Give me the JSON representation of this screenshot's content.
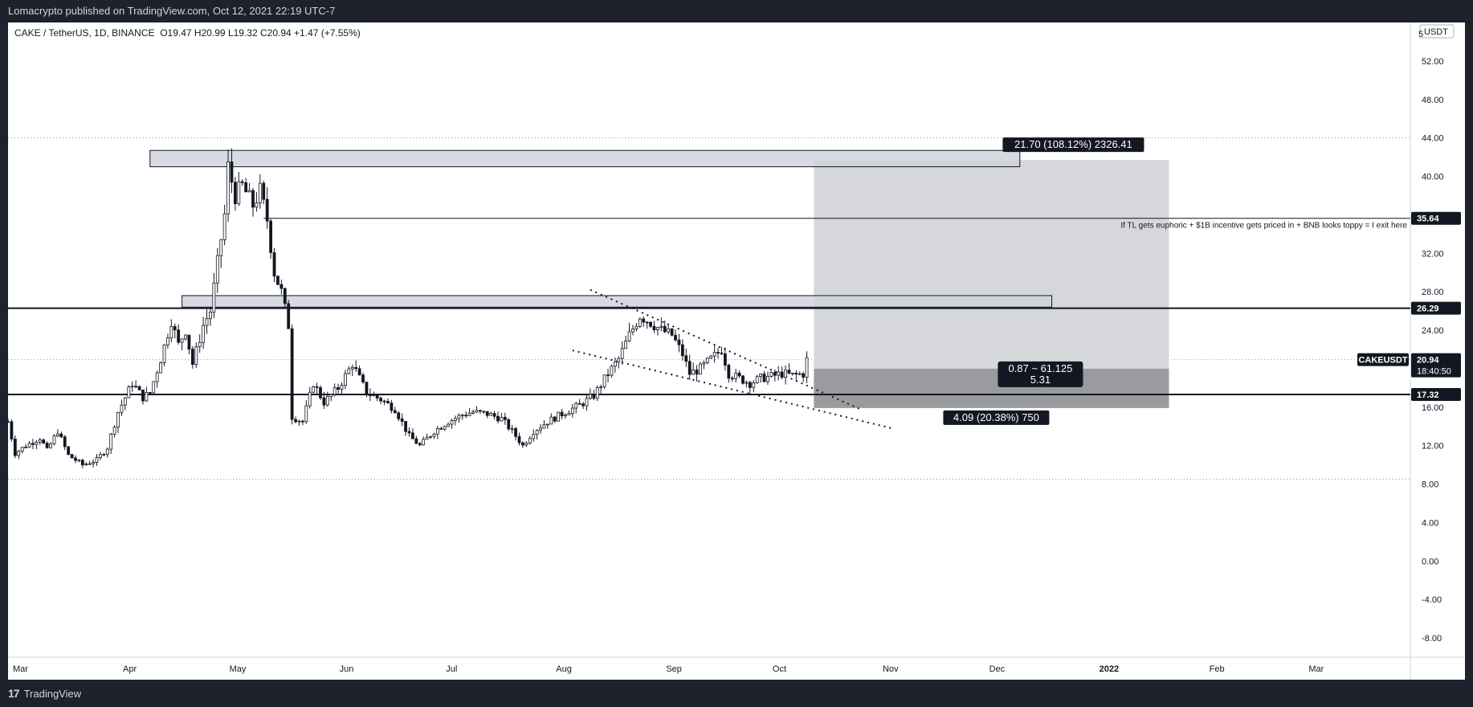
{
  "header": {
    "published_text": "Lomacrypto published on TradingView.com, Oct 12, 2021 22:19 UTC-7"
  },
  "footer": {
    "brand": "TradingView",
    "logo_glyph": "17"
  },
  "legend": {
    "symbol": "CAKE / TetherUS, 1D, BINANCE",
    "open": "O19.47",
    "high": "H20.99",
    "low": "L19.32",
    "close": "C20.94",
    "change": "+1.47 (+7.55%)"
  },
  "currency": "USDT",
  "chart_data": {
    "type": "candlestick",
    "ylim": [
      -10,
      56
    ],
    "y_ticks": [
      "52.00",
      "48.00",
      "44.00",
      "40.00",
      "36.00",
      "32.00",
      "28.00",
      "24.00",
      "20.00",
      "16.00",
      "12.00",
      "8.00",
      "4.00",
      "0.00",
      "-4.00",
      "-8.00"
    ],
    "y_tick_values": [
      52,
      48,
      44,
      40,
      36,
      32,
      28,
      24,
      20,
      16,
      12,
      8,
      4,
      0,
      -4,
      -8
    ],
    "y_top_tick_partial": "5",
    "x_ticks": [
      "Mar",
      "Apr",
      "May",
      "Jun",
      "Jul",
      "Aug",
      "Sep",
      "Oct",
      "Nov",
      "Dec",
      "2022",
      "Feb",
      "Mar"
    ],
    "x_tick_dates": [
      "2021-03-01",
      "2021-04-01",
      "2021-05-01",
      "2021-06-01",
      "2021-07-01",
      "2021-08-01",
      "2021-09-01",
      "2021-10-01",
      "2021-11-01",
      "2021-12-01",
      "2022-01-01",
      "2022-02-01",
      "2022-03-01"
    ],
    "x_range": [
      "2021-03-01",
      "2022-03-31"
    ],
    "price_series": {
      "name": "CAKEUSDT",
      "keypoints": [
        [
          "2021-03-01",
          14.5
        ],
        [
          "2021-03-03",
          11.2
        ],
        [
          "2021-03-06",
          12.0
        ],
        [
          "2021-03-10",
          12.8
        ],
        [
          "2021-03-12",
          11.5
        ],
        [
          "2021-03-15",
          13.5
        ],
        [
          "2021-03-18",
          11.0
        ],
        [
          "2021-03-22",
          10.0
        ],
        [
          "2021-03-26",
          10.5
        ],
        [
          "2021-03-29",
          11.8
        ],
        [
          "2021-04-01",
          15.5
        ],
        [
          "2021-04-05",
          18.5
        ],
        [
          "2021-04-08",
          17.0
        ],
        [
          "2021-04-10",
          17.5
        ],
        [
          "2021-04-13",
          21.0
        ],
        [
          "2021-04-16",
          25.0
        ],
        [
          "2021-04-18",
          22.5
        ],
        [
          "2021-04-20",
          24.0
        ],
        [
          "2021-04-22",
          20.5
        ],
        [
          "2021-04-25",
          24.5
        ],
        [
          "2021-04-27",
          26.0
        ],
        [
          "2021-04-29",
          31.0
        ],
        [
          "2021-05-01",
          36.0
        ],
        [
          "2021-05-02",
          41.0
        ],
        [
          "2021-05-04",
          38.0
        ],
        [
          "2021-05-06",
          39.0
        ],
        [
          "2021-05-09",
          37.0
        ],
        [
          "2021-05-11",
          38.5
        ],
        [
          "2021-05-13",
          35.5
        ],
        [
          "2021-05-15",
          30.0
        ],
        [
          "2021-05-17",
          28.0
        ],
        [
          "2021-05-19",
          24.5
        ],
        [
          "2021-05-20",
          15.0
        ],
        [
          "2021-05-23",
          14.5
        ],
        [
          "2021-05-26",
          18.5
        ],
        [
          "2021-05-29",
          16.5
        ],
        [
          "2021-06-02",
          18.0
        ],
        [
          "2021-06-06",
          20.5
        ],
        [
          "2021-06-10",
          17.5
        ],
        [
          "2021-06-14",
          16.8
        ],
        [
          "2021-06-18",
          15.8
        ],
        [
          "2021-06-22",
          13.0
        ],
        [
          "2021-06-25",
          12.0
        ],
        [
          "2021-06-29",
          13.5
        ],
        [
          "2021-07-03",
          14.5
        ],
        [
          "2021-07-07",
          15.2
        ],
        [
          "2021-07-10",
          15.5
        ],
        [
          "2021-07-14",
          15.3
        ],
        [
          "2021-07-18",
          14.8
        ],
        [
          "2021-07-21",
          13.5
        ],
        [
          "2021-07-24",
          12.0
        ],
        [
          "2021-07-27",
          13.5
        ],
        [
          "2021-07-31",
          14.5
        ],
        [
          "2021-08-05",
          15.5
        ],
        [
          "2021-08-09",
          16.2
        ],
        [
          "2021-08-13",
          17.2
        ],
        [
          "2021-08-17",
          19.5
        ],
        [
          "2021-08-20",
          21.0
        ],
        [
          "2021-08-23",
          23.5
        ],
        [
          "2021-08-26",
          25.5
        ],
        [
          "2021-08-29",
          24.8
        ],
        [
          "2021-09-01",
          24.0
        ],
        [
          "2021-09-04",
          23.5
        ],
        [
          "2021-09-07",
          21.5
        ],
        [
          "2021-09-09",
          19.5
        ],
        [
          "2021-09-12",
          20.0
        ],
        [
          "2021-09-15",
          21.0
        ],
        [
          "2021-09-18",
          22.0
        ],
        [
          "2021-09-20",
          19.5
        ],
        [
          "2021-09-23",
          19.0
        ],
        [
          "2021-09-26",
          18.5
        ],
        [
          "2021-09-29",
          19.0
        ],
        [
          "2021-10-02",
          19.2
        ],
        [
          "2021-10-05",
          19.5
        ],
        [
          "2021-10-08",
          19.3
        ],
        [
          "2021-10-11",
          19.47
        ],
        [
          "2021-10-12",
          20.94
        ]
      ]
    },
    "horizontal_levels": [
      {
        "label": "35.64",
        "value": 35.64,
        "style": "thin"
      },
      {
        "label": "26.29",
        "value": 26.29,
        "style": "thick"
      },
      {
        "label": "17.32",
        "value": 17.32,
        "style": "thick"
      }
    ],
    "dotted_levels": [
      44.0,
      20.94,
      8.5
    ],
    "zones": [
      {
        "from": "2021-04-10",
        "to": "2021-12-11",
        "low": 41.0,
        "high": 42.7
      },
      {
        "from": "2021-04-19",
        "to": "2021-12-20",
        "low": 26.4,
        "high": 27.6
      }
    ],
    "trendlines": [
      {
        "from": [
          "2021-08-12",
          28.2
        ],
        "to": [
          "2021-10-27",
          15.8
        ]
      },
      {
        "from": [
          "2021-08-07",
          21.9
        ],
        "to": [
          "2021-11-05",
          13.8
        ]
      }
    ],
    "position": {
      "entry": 20.0,
      "target": 41.7,
      "stop": 15.91,
      "from": "2021-10-14",
      "to": "2022-01-22",
      "target_label": "21.70 (108.12%) 2326.41",
      "mid_label_line1": "0.87 ~ 61.125",
      "mid_label_line2": "5.31",
      "stop_label": "4.09 (20.38%) 750"
    },
    "annotation": {
      "text": "If TL gets euphoric + $1B incentive gets priced in + BNB looks toppy = I exit here",
      "y": 35.0
    },
    "last_price": {
      "symbol": "CAKEUSDT",
      "value": "20.94",
      "countdown": "18:40:50"
    }
  }
}
